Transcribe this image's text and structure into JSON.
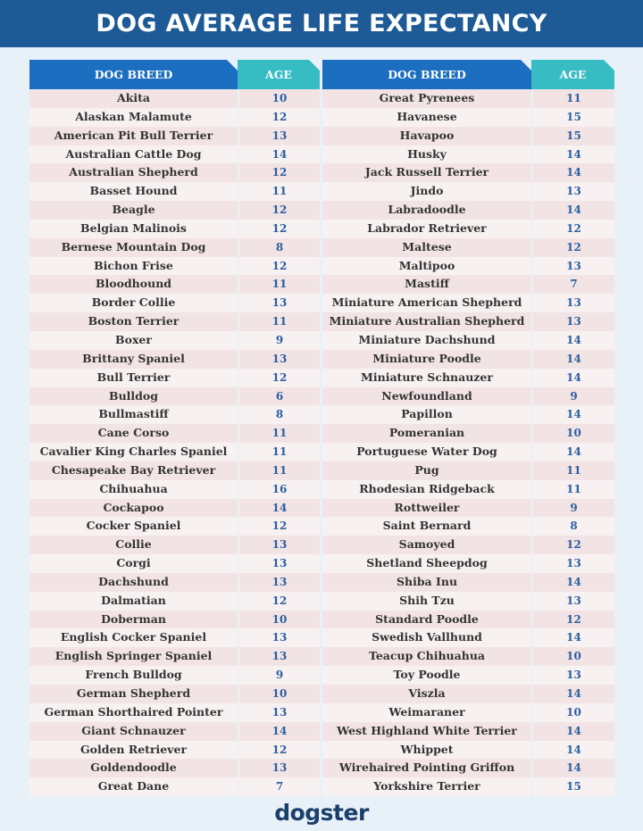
{
  "title": "DOG AVERAGE LIFE EXPECTANCY",
  "headers": {
    "breed": "DOG BREED",
    "age": "AGE"
  },
  "colors": {
    "title_bar": "#1d5a96",
    "breed_header": "#1b6ec0",
    "age_header": "#37bcc4",
    "age_text": "#2b5f9f"
  },
  "left": [
    [
      "Akita",
      "10"
    ],
    [
      "Alaskan Malamute",
      "12"
    ],
    [
      "American Pit Bull Terrier",
      "13"
    ],
    [
      "Australian Cattle Dog",
      "14"
    ],
    [
      "Australian Shepherd",
      "12"
    ],
    [
      "Basset Hound",
      "11"
    ],
    [
      "Beagle",
      "12"
    ],
    [
      "Belgian Malinois",
      "12"
    ],
    [
      "Bernese Mountain Dog",
      "8"
    ],
    [
      "Bichon Frise",
      "12"
    ],
    [
      "Bloodhound",
      "11"
    ],
    [
      "Border Collie",
      "13"
    ],
    [
      "Boston Terrier",
      "11"
    ],
    [
      "Boxer",
      "9"
    ],
    [
      "Brittany Spaniel",
      "13"
    ],
    [
      "Bull Terrier",
      "12"
    ],
    [
      "Bulldog",
      "6"
    ],
    [
      "Bullmastiff",
      "8"
    ],
    [
      "Cane Corso",
      "11"
    ],
    [
      "Cavalier King Charles Spaniel",
      "11"
    ],
    [
      "Chesapeake Bay Retriever",
      "11"
    ],
    [
      "Chihuahua",
      "16"
    ],
    [
      "Cockapoo",
      "14"
    ],
    [
      "Cocker Spaniel",
      "12"
    ],
    [
      "Collie",
      "13"
    ],
    [
      "Corgi",
      "13"
    ],
    [
      "Dachshund",
      "13"
    ],
    [
      "Dalmatian",
      "12"
    ],
    [
      "Doberman",
      "10"
    ],
    [
      "English Cocker Spaniel",
      "13"
    ],
    [
      "English Springer Spaniel",
      "13"
    ],
    [
      "French Bulldog",
      "9"
    ],
    [
      "German Shepherd",
      "10"
    ],
    [
      "German Shorthaired Pointer",
      "13"
    ],
    [
      "Giant Schnauzer",
      "14"
    ],
    [
      "Golden Retriever",
      "12"
    ],
    [
      "Goldendoodle",
      "13"
    ],
    [
      "Great Dane",
      "7"
    ]
  ],
  "right": [
    [
      "Great Pyrenees",
      "11"
    ],
    [
      "Havanese",
      "15"
    ],
    [
      "Havapoo",
      "15"
    ],
    [
      "Husky",
      "14"
    ],
    [
      "Jack Russell Terrier",
      "14"
    ],
    [
      "Jindo",
      "13"
    ],
    [
      "Labradoodle",
      "14"
    ],
    [
      "Labrador Retriever",
      "12"
    ],
    [
      "Maltese",
      "12"
    ],
    [
      "Maltipoo",
      "13"
    ],
    [
      "Mastiff",
      "7"
    ],
    [
      "Miniature American Shepherd",
      "13"
    ],
    [
      "Miniature Australian Shepherd",
      "13"
    ],
    [
      "Miniature Dachshund",
      "14"
    ],
    [
      "Miniature Poodle",
      "14"
    ],
    [
      "Miniature Schnauzer",
      "14"
    ],
    [
      "Newfoundland",
      "9"
    ],
    [
      "Papillon",
      "14"
    ],
    [
      "Pomeranian",
      "10"
    ],
    [
      "Portuguese Water Dog",
      "14"
    ],
    [
      "Pug",
      "11"
    ],
    [
      "Rhodesian Ridgeback",
      "11"
    ],
    [
      "Rottweiler",
      "9"
    ],
    [
      "Saint Bernard",
      "8"
    ],
    [
      "Samoyed",
      "12"
    ],
    [
      "Shetland Sheepdog",
      "13"
    ],
    [
      "Shiba Inu",
      "14"
    ],
    [
      "Shih Tzu",
      "13"
    ],
    [
      "Standard Poodle",
      "12"
    ],
    [
      "Swedish Vallhund",
      "14"
    ],
    [
      "Teacup Chihuahua",
      "10"
    ],
    [
      "Toy Poodle",
      "13"
    ],
    [
      "Viszla",
      "14"
    ],
    [
      "Weimaraner",
      "10"
    ],
    [
      "West Highland White Terrier",
      "14"
    ],
    [
      "Whippet",
      "14"
    ],
    [
      "Wirehaired Pointing Griffon",
      "14"
    ],
    [
      "Yorkshire Terrier",
      "15"
    ]
  ],
  "logo": "dogster"
}
